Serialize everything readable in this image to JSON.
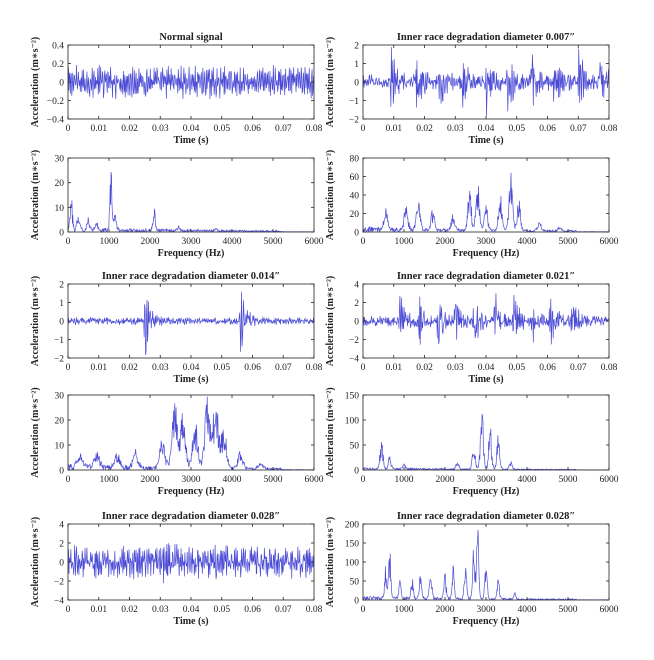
{
  "figure": {
    "background": "#ffffff",
    "line_color": "#4b4bd6",
    "axis_color": "#222222"
  },
  "chart_data": [
    {
      "type": "line",
      "title": "Normal signal",
      "xlabel": "Time (s)",
      "ylabel": "Acceleration (m∗s⁻²)",
      "xlim": [
        0,
        0.08
      ],
      "ylim": [
        -0.4,
        0.4
      ],
      "xticks": [
        "0",
        "0.01",
        "0.02",
        "0.03",
        "0.04",
        "0.05",
        "0.06",
        "0.07",
        "0.08"
      ],
      "yticks": [
        "−0.4",
        "−0.2",
        "0",
        "0.2",
        "0.4"
      ],
      "series": [
        {
          "kind": "time",
          "amplitude": 0.18,
          "bursts": [],
          "burst_amp": 0,
          "dense": 0.5
        }
      ]
    },
    {
      "type": "line",
      "title": "Inner race degradation diameter 0.007″",
      "xlabel": "Time (s)",
      "ylabel": "Acceleration (m∗s⁻²)",
      "xlim": [
        0,
        0.08
      ],
      "ylim": [
        -2,
        2
      ],
      "xticks": [
        "0",
        "0.01",
        "0.02",
        "0.03",
        "0.04",
        "0.05",
        "0.06",
        "0.07",
        "0.08"
      ],
      "yticks": [
        "−2",
        "−1",
        "0",
        "1",
        "2"
      ],
      "series": [
        {
          "kind": "time",
          "amplitude": 0.3,
          "bursts": [
            0.009,
            0.017,
            0.025,
            0.032,
            0.04,
            0.047,
            0.055,
            0.062,
            0.07,
            0.077
          ],
          "burst_amp": 1.3,
          "dense": 0.9
        }
      ]
    },
    {
      "type": "line",
      "xlabel": "Frequency (Hz)",
      "ylabel": "Acceleration (m∗s⁻²)",
      "xlim": [
        0,
        6000
      ],
      "ylim": [
        0,
        30
      ],
      "xticks": [
        "0",
        "1000",
        "2000",
        "3000",
        "4000",
        "5000",
        "6000"
      ],
      "yticks": [
        "0",
        "10",
        "20",
        "30"
      ],
      "series": [
        {
          "kind": "spectrum",
          "peaks": [
            [
              80,
              11
            ],
            [
              250,
              8
            ],
            [
              500,
              5
            ],
            [
              700,
              4
            ],
            [
              1050,
              23
            ],
            [
              1150,
              8
            ],
            [
              2100,
              8
            ],
            [
              2700,
              1.5
            ],
            [
              3600,
              1
            ]
          ],
          "noise": 2,
          "width": 40
        }
      ]
    },
    {
      "type": "line",
      "xlabel": "Frequency (Hz)",
      "ylabel": "Acceleration (m∗s⁻²)",
      "xlim": [
        0,
        6000
      ],
      "ylim": [
        0,
        80
      ],
      "xticks": [
        "0",
        "1000",
        "2000",
        "3000",
        "4000",
        "5000",
        "6000"
      ],
      "yticks": [
        "0",
        "20",
        "40",
        "60",
        "80"
      ],
      "series": [
        {
          "kind": "spectrum",
          "peaks": [
            [
              550,
              25
            ],
            [
              1050,
              25
            ],
            [
              1350,
              35
            ],
            [
              1700,
              20
            ],
            [
              2200,
              15
            ],
            [
              2600,
              40
            ],
            [
              2800,
              45
            ],
            [
              3000,
              25
            ],
            [
              3350,
              35
            ],
            [
              3600,
              60
            ],
            [
              3800,
              30
            ],
            [
              4300,
              10
            ],
            [
              4800,
              4
            ]
          ],
          "noise": 6,
          "width": 60
        }
      ]
    },
    {
      "type": "line",
      "title": "Inner race degradation diameter 0.014″",
      "xlabel": "Time (s)",
      "ylabel": "Acceleration (m∗s⁻²)",
      "xlim": [
        0,
        0.08
      ],
      "ylim": [
        -2,
        2
      ],
      "xticks": [
        "0",
        "0.01",
        "0.02",
        "0.03",
        "0.04",
        "0.05",
        "0.06",
        "0.07",
        "0.08"
      ],
      "yticks": [
        "−2",
        "−1",
        "0",
        "1",
        "2"
      ],
      "series": [
        {
          "kind": "time",
          "amplitude": 0.15,
          "bursts": [
            0.025,
            0.056
          ],
          "burst_amp": 1.5,
          "dense": 0.9
        }
      ]
    },
    {
      "type": "line",
      "title": "Inner race degradation diameter 0.021″",
      "xlabel": "Time (s)",
      "ylabel": "Acceleration (m∗s⁻²)",
      "xlim": [
        0,
        0.08
      ],
      "ylim": [
        -4,
        4
      ],
      "xticks": [
        "0",
        "0.01",
        "0.02",
        "0.03",
        "0.04",
        "0.05",
        "0.06",
        "0.07",
        "0.08"
      ],
      "yticks": [
        "−4",
        "−2",
        "0",
        "2",
        "4"
      ],
      "series": [
        {
          "kind": "time",
          "amplitude": 0.4,
          "bursts": [
            0.012,
            0.018,
            0.024,
            0.03,
            0.036,
            0.043,
            0.049,
            0.055,
            0.061,
            0.068
          ],
          "burst_amp": 2.2,
          "dense": 0.9
        }
      ]
    },
    {
      "type": "line",
      "xlabel": "Frequency (Hz)",
      "ylabel": "Acceleration (m∗s⁻²)",
      "xlim": [
        0,
        6000
      ],
      "ylim": [
        0,
        30
      ],
      "xticks": [
        "0",
        "1000",
        "2000",
        "3000",
        "4000",
        "5000",
        "6000"
      ],
      "yticks": [
        "0",
        "10",
        "20",
        "30"
      ],
      "series": [
        {
          "kind": "spectrum",
          "peaks": [
            [
              300,
              5
            ],
            [
              700,
              5
            ],
            [
              1200,
              5
            ],
            [
              1650,
              6
            ],
            [
              2300,
              10
            ],
            [
              2600,
              24
            ],
            [
              2800,
              20
            ],
            [
              3100,
              18
            ],
            [
              3400,
              27
            ],
            [
              3600,
              25
            ],
            [
              3800,
              15
            ],
            [
              4200,
              6
            ],
            [
              4700,
              2
            ]
          ],
          "noise": 2.5,
          "width": 90
        }
      ]
    },
    {
      "type": "line",
      "xlabel": "Frequency (Hz)",
      "ylabel": "Acceleration (m∗s⁻²)",
      "xlim": [
        0,
        6000
      ],
      "ylim": [
        0,
        150
      ],
      "xticks": [
        "0",
        "1000",
        "2000",
        "3000",
        "4000",
        "5000",
        "6000"
      ],
      "yticks": [
        "0",
        "50",
        "100",
        "150"
      ],
      "series": [
        {
          "kind": "spectrum",
          "peaks": [
            [
              450,
              50
            ],
            [
              650,
              20
            ],
            [
              1000,
              10
            ],
            [
              2300,
              15
            ],
            [
              2700,
              50
            ],
            [
              2900,
              110
            ],
            [
              3100,
              80
            ],
            [
              3300,
              60
            ],
            [
              3600,
              15
            ]
          ],
          "noise": 5,
          "width": 50
        }
      ]
    },
    {
      "type": "line",
      "title": "Inner race degradation diameter 0.028″",
      "xlabel": "Time (s)",
      "ylabel": "Acceleration (m∗s⁻²)",
      "xlim": [
        0,
        0.08
      ],
      "ylim": [
        -4,
        4
      ],
      "xticks": [
        "0",
        "0.01",
        "0.02",
        "0.03",
        "0.04",
        "0.05",
        "0.06",
        "0.07",
        "0.08"
      ],
      "yticks": [
        "−4",
        "−2",
        "0",
        "2",
        "4"
      ],
      "series": [
        {
          "kind": "time",
          "amplitude": 1.6,
          "bursts": [
            0.03,
            0.047
          ],
          "burst_amp": 1.6,
          "dense": 0.6
        }
      ]
    },
    {
      "type": "line",
      "title": "Inner race degradation diameter 0.028″",
      "xlabel": "Frequency (Hz)",
      "ylabel": "Acceleration (m∗s⁻²)",
      "xlim": [
        0,
        6000
      ],
      "ylim": [
        0,
        200
      ],
      "xticks": [
        "0",
        "1000",
        "2000",
        "3000",
        "4000",
        "5000",
        "6000"
      ],
      "yticks": [
        "0",
        "50",
        "100",
        "150",
        "200"
      ],
      "series": [
        {
          "kind": "spectrum",
          "peaks": [
            [
              550,
              70
            ],
            [
              650,
              125
            ],
            [
              900,
              40
            ],
            [
              1200,
              50
            ],
            [
              1400,
              70
            ],
            [
              1650,
              75
            ],
            [
              2000,
              60
            ],
            [
              2200,
              75
            ],
            [
              2500,
              80
            ],
            [
              2700,
              120
            ],
            [
              2800,
              170
            ],
            [
              3000,
              80
            ],
            [
              3300,
              45
            ],
            [
              3700,
              15
            ]
          ],
          "noise": 10,
          "width": 40
        }
      ]
    }
  ]
}
